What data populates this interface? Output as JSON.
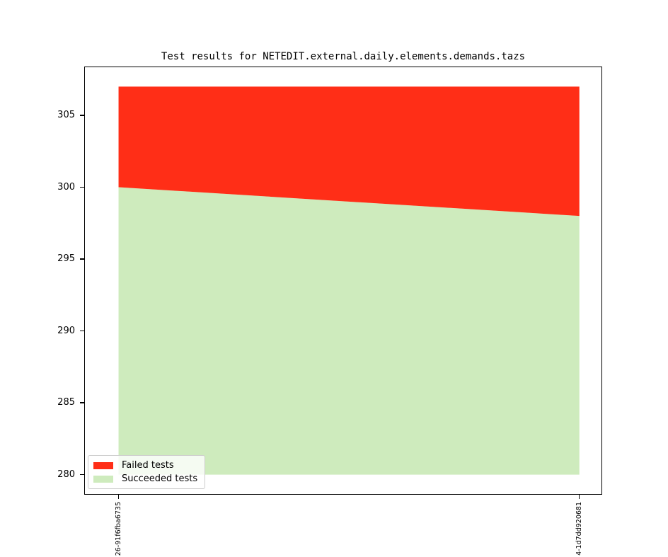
{
  "title": "Test results for NETEDIT.external.daily.elements.demands.tazs",
  "chart_data": {
    "type": "area",
    "stacked": true,
    "title": "Test results for NETEDIT.external.daily.elements.demands.tazs",
    "x": [
      0,
      1
    ],
    "x_tick_labels": [
      "26-91f6fba6735",
      "4-1d7dd920681"
    ],
    "series": [
      {
        "name": "Failed tests",
        "color": "#FF2E17",
        "values": [
          7,
          9
        ]
      },
      {
        "name": "Succeeded tests",
        "color": "#CEEBBD",
        "values": [
          300,
          298
        ]
      }
    ],
    "totals": [
      307,
      307
    ],
    "baseline": 280,
    "y_ticks": [
      280,
      285,
      290,
      295,
      300,
      305
    ],
    "ylim": [
      278.65,
      308.35
    ],
    "xlim": [
      -0.073,
      1.048
    ],
    "grid": false,
    "legend": {
      "position": "lower left",
      "entries": [
        "Failed tests",
        "Succeeded tests"
      ]
    },
    "axis_color": "#000000",
    "background_color": "#ffffff"
  }
}
